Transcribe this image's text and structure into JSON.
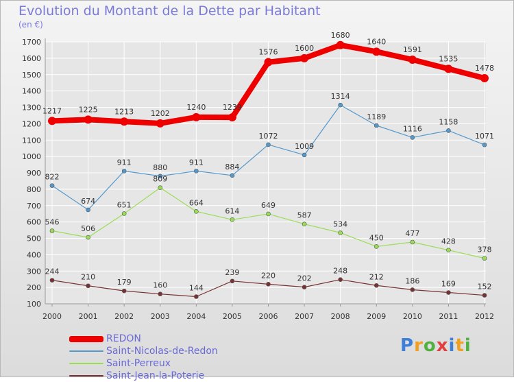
{
  "title": "Evolution du Montant de la Dette par Habitant",
  "subtitle": "(en €)",
  "brand": {
    "text": "Proxiti",
    "colors": [
      "#3c7fd8",
      "#f0a020",
      "#50b040",
      "#e04040",
      "#3c7fd8",
      "#f0a020",
      "#50b040"
    ]
  },
  "chart_data": {
    "type": "line",
    "title": "Evolution du Montant de la Dette par Habitant",
    "ylabel": "(en €)",
    "x": [
      "2000",
      "2001",
      "2002",
      "2003",
      "2004",
      "2005",
      "2006",
      "2007",
      "2008",
      "2009",
      "2010",
      "2011",
      "2012"
    ],
    "ylim": [
      100,
      1700
    ],
    "yticks": [
      100,
      200,
      300,
      400,
      500,
      600,
      700,
      800,
      900,
      1000,
      1100,
      1200,
      1300,
      1400,
      1500,
      1600,
      1700
    ],
    "grid": true,
    "legend_position": "bottom-left",
    "series": [
      {
        "name": "REDON",
        "color": "#ee0000",
        "values": [
          1217,
          1225,
          1213,
          1202,
          1240,
          1239,
          1576,
          1600,
          1680,
          1640,
          1591,
          1535,
          1478
        ],
        "labels": [
          "1217",
          "1225",
          "1213",
          "1202",
          "1240",
          "1239",
          "1576",
          "1600",
          "1680",
          "1640",
          "1591",
          "1535",
          "1478"
        ]
      },
      {
        "name": "Saint-Nicolas-de-Redon",
        "color": "#5599cc",
        "values": [
          822,
          674,
          911,
          880,
          911,
          884,
          1072,
          1009,
          1314,
          1189,
          1116,
          1158,
          1071
        ],
        "labels": [
          "822",
          "674",
          "911",
          "880",
          "911",
          "884",
          "1072",
          "1009",
          "1314",
          "1189",
          "1116",
          "1158",
          "1071"
        ]
      },
      {
        "name": "Saint-Perreux",
        "color": "#99dd55",
        "values": [
          546,
          506,
          651,
          809,
          664,
          614,
          649,
          587,
          534,
          450,
          477,
          428,
          378
        ],
        "labels": [
          "546",
          "506",
          "651",
          "809",
          "664",
          "614",
          "649",
          "587",
          "534",
          "450",
          "477",
          "428",
          "378"
        ]
      },
      {
        "name": "Saint-Jean-la-Poterie",
        "color": "#773333",
        "values": [
          244,
          210,
          179,
          160,
          144,
          239,
          220,
          202,
          248,
          212,
          186,
          169,
          152
        ],
        "labels": [
          "244",
          "210",
          "179",
          "160",
          "144",
          "239",
          "220",
          "202",
          "248",
          "212",
          "186",
          "169",
          "152"
        ]
      }
    ]
  }
}
